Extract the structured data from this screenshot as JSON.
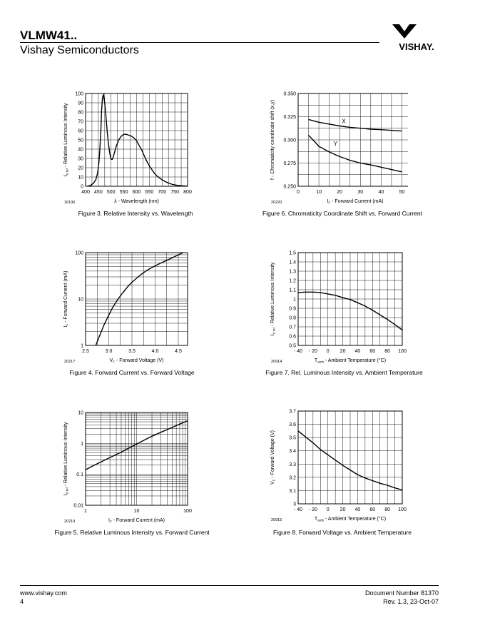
{
  "header": {
    "title": "VLMW41..",
    "subtitle": "Vishay Semiconductors",
    "logo_text": "VISHAY."
  },
  "footer": {
    "website": "www.vishay.com",
    "page_number": "4",
    "document_number": "Document Number 81370",
    "revision": "Rev. 1.3, 23-Oct-07"
  },
  "colors": {
    "text": "#000000",
    "grid": "#000000"
  },
  "chart_data": [
    {
      "id": "fig3",
      "type": "line",
      "title": "Figure 3. Relative Intensity vs. Wavelength",
      "code": "16196",
      "xlabel": "λ - Wavelength (nm)",
      "ylabel_main": "I",
      "ylabel_sub": "V rel",
      "ylabel_rest": " - Relative Luminous Intensity",
      "xscale": "linear",
      "yscale": "linear",
      "xlim": [
        400,
        800
      ],
      "ylim": [
        0,
        100
      ],
      "xticks": [
        400,
        450,
        500,
        550,
        600,
        650,
        700,
        750,
        800
      ],
      "xtick_labels": [
        "400",
        "450",
        "500",
        "550",
        "600",
        "650",
        "700",
        "750",
        "800"
      ],
      "yticks": [
        0,
        10,
        20,
        30,
        40,
        50,
        60,
        70,
        80,
        90,
        100
      ],
      "ytick_labels": [
        "0",
        "10",
        "20",
        "30",
        "40",
        "50",
        "60",
        "70",
        "80",
        "90",
        "100"
      ],
      "xgrid": [
        400,
        425,
        450,
        475,
        500,
        525,
        550,
        575,
        600,
        625,
        650,
        675,
        700,
        725,
        750,
        775,
        800
      ],
      "ygrid": [
        0,
        10,
        20,
        30,
        40,
        50,
        60,
        70,
        80,
        90,
        100
      ],
      "series": [
        {
          "name": "",
          "x": [
            405,
            420,
            430,
            440,
            447,
            452,
            456,
            460,
            463,
            466,
            470,
            475,
            480,
            485,
            490,
            495,
            500,
            505,
            510,
            515,
            520,
            530,
            540,
            550,
            560,
            570,
            580,
            590,
            600,
            610,
            620,
            630,
            640,
            650,
            660,
            670,
            680,
            700,
            720,
            740,
            760,
            780,
            800
          ],
          "y": [
            0,
            1,
            3,
            7,
            14,
            25,
            40,
            62,
            82,
            95,
            99,
            90,
            75,
            58,
            45,
            35,
            29,
            29,
            33,
            38,
            43,
            50,
            54,
            56,
            56,
            55,
            54,
            52,
            49,
            44,
            39,
            33,
            27,
            22,
            18,
            14,
            11,
            7,
            4,
            2,
            1,
            0.5,
            0
          ]
        }
      ]
    },
    {
      "id": "fig6",
      "type": "line",
      "title": "Figure 6. Chromaticity Coordinate Shift vs. Forward Current",
      "code": "20220",
      "xlabel_main": "I",
      "xlabel_sub": "F",
      "xlabel_rest": " - Forward Current (mA)",
      "ylabel": "f - Chromaticity coordinate shift (x,y)",
      "xscale": "linear",
      "yscale": "linear",
      "xlim": [
        0,
        55
      ],
      "ylim": [
        0.25,
        0.35
      ],
      "xticks": [
        0,
        10,
        20,
        30,
        40,
        50
      ],
      "xtick_labels": [
        "0",
        "10",
        "20",
        "30",
        "40",
        "50"
      ],
      "yticks": [
        0.25,
        0.275,
        0.3,
        0.325,
        0.35
      ],
      "ytick_labels": [
        "0.250",
        "0.275",
        "0.300",
        "0.325",
        "0.350"
      ],
      "xgrid": [
        0,
        5,
        10,
        15,
        20,
        25,
        30,
        35,
        40,
        45,
        50,
        55
      ],
      "ygrid": [
        0.25,
        0.2625,
        0.275,
        0.2875,
        0.3,
        0.3125,
        0.325,
        0.3375,
        0.35
      ],
      "series": [
        {
          "name": "X",
          "x": [
            5,
            10,
            15,
            20,
            25,
            30,
            35,
            40,
            45,
            50
          ],
          "y": [
            0.322,
            0.319,
            0.317,
            0.315,
            0.3135,
            0.3125,
            0.3115,
            0.311,
            0.3102,
            0.3095
          ]
        },
        {
          "name": "Y",
          "x": [
            5,
            8,
            10,
            15,
            20,
            25,
            30,
            35,
            40,
            45,
            50
          ],
          "y": [
            0.305,
            0.298,
            0.293,
            0.287,
            0.282,
            0.278,
            0.275,
            0.273,
            0.2705,
            0.268,
            0.2655
          ]
        }
      ],
      "annotations": [
        {
          "text": "X",
          "x": 22,
          "y": 0.318
        },
        {
          "text": "Y",
          "x": 18,
          "y": 0.294
        }
      ]
    },
    {
      "id": "fig4",
      "type": "line",
      "title": "Figure 4. Forward Current vs. Forward Voltage",
      "code": "20217",
      "xlabel_main": "V",
      "xlabel_sub": "F",
      "xlabel_rest": " - Forward Voltage (V)",
      "ylabel_main": "I",
      "ylabel_sub": "F",
      "ylabel_rest": " - Forward Current (mA)",
      "xscale": "linear",
      "yscale": "log",
      "xlim": [
        2.5,
        4.7
      ],
      "ylim": [
        1,
        100
      ],
      "xticks": [
        2.5,
        3.0,
        3.5,
        4.0,
        4.5
      ],
      "xtick_labels": [
        "2.5",
        "3.0",
        "3.5",
        "4.0",
        "4.5"
      ],
      "yticks": [
        1,
        10,
        100
      ],
      "ytick_labels": [
        "1",
        "10",
        "100"
      ],
      "xgrid": [
        2.5,
        2.75,
        3.0,
        3.25,
        3.5,
        3.75,
        4.0,
        4.25,
        4.5
      ],
      "ygrid": [
        1,
        2,
        3,
        4,
        5,
        6,
        7,
        8,
        9,
        10,
        20,
        30,
        40,
        50,
        60,
        70,
        80,
        90,
        100
      ],
      "series": [
        {
          "name": "",
          "x": [
            2.72,
            2.8,
            2.9,
            3.0,
            3.1,
            3.2,
            3.3,
            3.4,
            3.5,
            3.6,
            3.7,
            3.8,
            3.9,
            4.0,
            4.1,
            4.2,
            4.3,
            4.4,
            4.5,
            4.6
          ],
          "y": [
            1,
            1.6,
            2.8,
            4.5,
            7,
            10,
            13.5,
            18,
            23,
            28,
            34,
            40,
            46,
            52,
            58,
            65,
            72,
            80,
            89,
            100
          ]
        }
      ]
    },
    {
      "id": "fig7",
      "type": "line",
      "title": "Figure 7. Rel. Luminous Intensity vs. Ambient Temperature",
      "code": "20914",
      "xlabel_main": "T",
      "xlabel_sub": "amb",
      "xlabel_rest": " - Ambient Temperature (°C)",
      "ylabel_main": "I",
      "ylabel_sub": "V rel",
      "ylabel_rest": " - Relative Luminous Intensity",
      "xscale": "linear",
      "yscale": "linear",
      "xlim": [
        -40,
        100
      ],
      "ylim": [
        0.5,
        1.5
      ],
      "xticks": [
        -40,
        -20,
        0,
        20,
        40,
        60,
        80,
        100
      ],
      "xtick_labels": [
        "- 40",
        "- 20",
        "0",
        "20",
        "40",
        "60",
        "80",
        "100"
      ],
      "yticks": [
        0.5,
        0.6,
        0.7,
        0.8,
        0.9,
        1.0,
        1.1,
        1.2,
        1.3,
        1.4,
        1.5
      ],
      "ytick_labels": [
        "0.5",
        "0.6",
        "0.7",
        "0.8",
        "0.9",
        "1",
        "1.1",
        "1.2",
        "1.3",
        "1.4",
        "1.5"
      ],
      "xgrid": [
        -40,
        -30,
        -20,
        -10,
        0,
        10,
        20,
        30,
        40,
        50,
        60,
        70,
        80,
        90,
        100
      ],
      "ygrid": [
        0.5,
        0.6,
        0.7,
        0.8,
        0.9,
        1.0,
        1.1,
        1.2,
        1.3,
        1.4,
        1.5
      ],
      "series": [
        {
          "name": "",
          "x": [
            -40,
            -30,
            -20,
            -10,
            0,
            10,
            20,
            30,
            40,
            50,
            60,
            70,
            80,
            90,
            100
          ],
          "y": [
            1.07,
            1.075,
            1.075,
            1.07,
            1.055,
            1.04,
            1.015,
            0.995,
            0.96,
            0.925,
            0.88,
            0.83,
            0.78,
            0.725,
            0.665
          ]
        }
      ]
    },
    {
      "id": "fig5",
      "type": "line",
      "title": "Figure 5. Relative Luminous Intensity vs. Forward Current",
      "code": "20219",
      "xlabel_main": "I",
      "xlabel_sub": "F",
      "xlabel_rest": " - Forward Current (mA)",
      "ylabel_main": "I",
      "ylabel_sub": "V rel",
      "ylabel_rest": " - Relative Luminous Intensity",
      "xscale": "log",
      "yscale": "log",
      "xlim": [
        1,
        100
      ],
      "ylim": [
        0.01,
        10
      ],
      "xticks": [
        1,
        10,
        100
      ],
      "xtick_labels": [
        "1",
        "10",
        "100"
      ],
      "yticks": [
        0.01,
        0.1,
        1,
        10
      ],
      "ytick_labels": [
        "0.01",
        "0.1",
        "1",
        "10"
      ],
      "xgrid": [
        1,
        2,
        3,
        4,
        5,
        6,
        7,
        8,
        9,
        10,
        20,
        30,
        40,
        50,
        60,
        70,
        80,
        90,
        100
      ],
      "ygrid": [
        0.01,
        0.02,
        0.03,
        0.04,
        0.05,
        0.06,
        0.07,
        0.08,
        0.09,
        0.1,
        0.2,
        0.3,
        0.4,
        0.5,
        0.6,
        0.7,
        0.8,
        0.9,
        1,
        2,
        3,
        4,
        5,
        6,
        7,
        8,
        9,
        10
      ],
      "series": [
        {
          "name": "",
          "x": [
            1,
            1.5,
            2,
            3,
            5,
            7,
            10,
            15,
            20,
            30,
            50,
            70,
            100
          ],
          "y": [
            0.14,
            0.2,
            0.25,
            0.35,
            0.52,
            0.7,
            0.95,
            1.35,
            1.7,
            2.3,
            3.3,
            4.2,
            5.4
          ]
        }
      ]
    },
    {
      "id": "fig8",
      "type": "line",
      "title": "Figure 8. Forward Voltage vs. Ambient Temperature",
      "code": "20915",
      "xlabel_main": "T",
      "xlabel_sub": "amb",
      "xlabel_rest": " - Ambient Temperature (°C)",
      "ylabel_main": "V",
      "ylabel_sub": "F",
      "ylabel_rest": " - Forward Voltage (V)",
      "xscale": "linear",
      "yscale": "linear",
      "xlim": [
        -40,
        100
      ],
      "ylim": [
        3.0,
        3.7
      ],
      "xticks": [
        -40,
        -20,
        0,
        20,
        40,
        60,
        80,
        100
      ],
      "xtick_labels": [
        "- 40",
        "- 20",
        "0",
        "20",
        "40",
        "60",
        "80",
        "100"
      ],
      "yticks": [
        3.0,
        3.1,
        3.2,
        3.3,
        3.4,
        3.5,
        3.6,
        3.7
      ],
      "ytick_labels": [
        "3",
        "3.1",
        "3.2",
        "3.3",
        "3.4",
        "3.5",
        "3.6",
        "3.7"
      ],
      "xgrid": [
        -40,
        -30,
        -20,
        -10,
        0,
        10,
        20,
        30,
        40,
        50,
        60,
        70,
        80,
        90,
        100
      ],
      "ygrid": [
        3.0,
        3.1,
        3.2,
        3.3,
        3.4,
        3.5,
        3.6,
        3.7
      ],
      "series": [
        {
          "name": "",
          "x": [
            -40,
            -30,
            -20,
            -10,
            0,
            10,
            20,
            30,
            40,
            50,
            60,
            70,
            80,
            90,
            100
          ],
          "y": [
            3.55,
            3.505,
            3.46,
            3.41,
            3.37,
            3.33,
            3.29,
            3.255,
            3.22,
            3.195,
            3.175,
            3.155,
            3.14,
            3.12,
            3.105
          ]
        }
      ]
    }
  ]
}
